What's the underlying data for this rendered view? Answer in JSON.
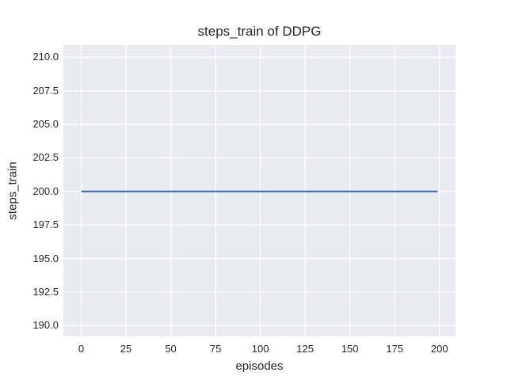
{
  "figure": {
    "title": "steps_train of DDPG",
    "xlabel": "episodes",
    "ylabel": "steps_train"
  },
  "chart_data": {
    "type": "line",
    "title": "steps_train of DDPG",
    "xlabel": "episodes",
    "ylabel": "steps_train",
    "series": [
      {
        "name": "steps_train",
        "color": "#4c72b0",
        "x": [
          0,
          199
        ],
        "y": [
          200,
          200
        ]
      }
    ],
    "xticks": [
      {
        "label": "0",
        "value": 0
      },
      {
        "label": "25",
        "value": 25
      },
      {
        "label": "50",
        "value": 50
      },
      {
        "label": "75",
        "value": 75
      },
      {
        "label": "100",
        "value": 100
      },
      {
        "label": "125",
        "value": 125
      },
      {
        "label": "150",
        "value": 150
      },
      {
        "label": "175",
        "value": 175
      },
      {
        "label": "200",
        "value": 200
      }
    ],
    "yticks": [
      {
        "label": "210.0",
        "value": 210.0
      },
      {
        "label": "207.5",
        "value": 207.5
      },
      {
        "label": "205.0",
        "value": 205.0
      },
      {
        "label": "202.5",
        "value": 202.5
      },
      {
        "label": "200.0",
        "value": 200.0
      },
      {
        "label": "197.5",
        "value": 197.5
      },
      {
        "label": "195.0",
        "value": 195.0
      },
      {
        "label": "192.5",
        "value": 192.5
      },
      {
        "label": "190.0",
        "value": 190.0
      }
    ],
    "xlim": [
      -9.95,
      208.95
    ],
    "ylim": [
      189.2,
      210.9
    ],
    "grid": true,
    "legend": null,
    "style": {
      "plot_bg": "#eaeaf2",
      "grid_color": "#ffffff",
      "figure_bg": "#ffffff",
      "text_color": "#262626"
    }
  }
}
